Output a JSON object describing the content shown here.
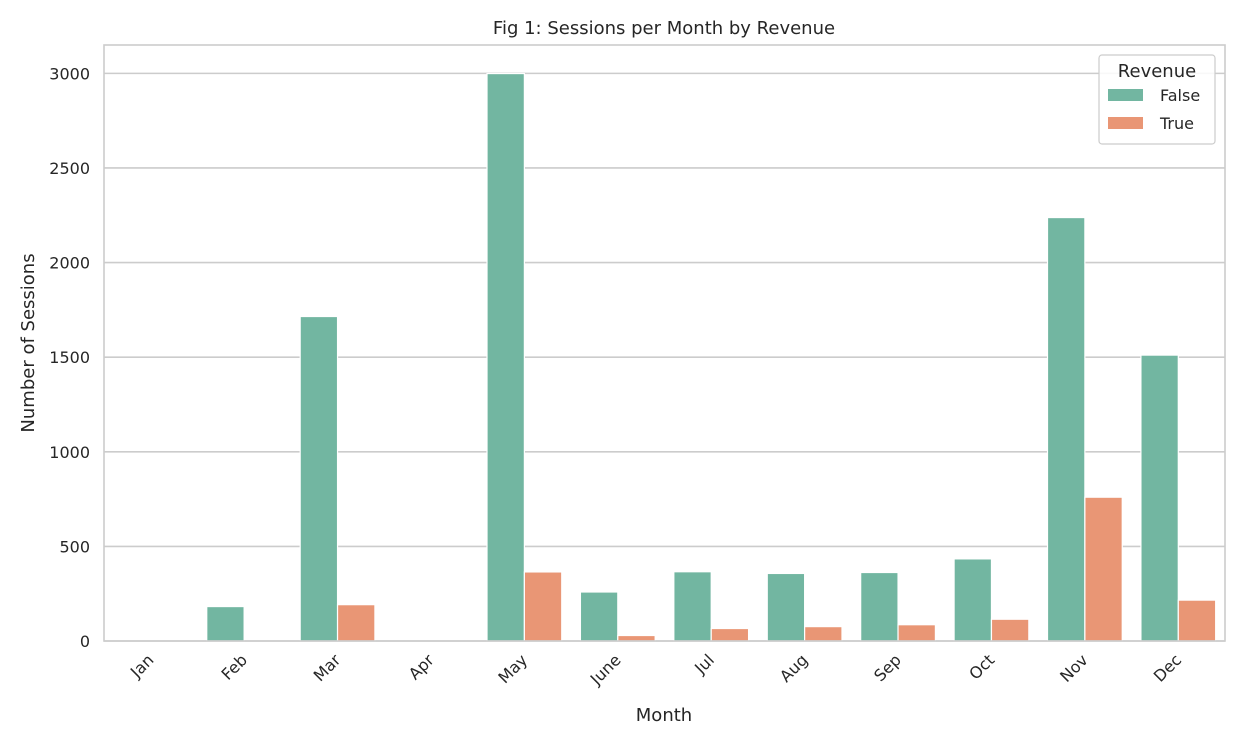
{
  "chart_data": {
    "type": "bar",
    "title": "Fig 1: Sessions per Month by Revenue",
    "xlabel": "Month",
    "ylabel": "Number of Sessions",
    "categories": [
      "Jan",
      "Feb",
      "Mar",
      "Apr",
      "May",
      "June",
      "Jul",
      "Aug",
      "Sep",
      "Oct",
      "Nov",
      "Dec"
    ],
    "series": [
      {
        "name": "False",
        "color": "#72b6a1",
        "values": [
          0,
          182,
          1715,
          0,
          2999,
          259,
          366,
          357,
          362,
          434,
          2238,
          1511
        ]
      },
      {
        "name": "True",
        "color": "#e99675",
        "values": [
          0,
          0,
          192,
          0,
          365,
          29,
          66,
          76,
          86,
          115,
          760,
          216
        ]
      }
    ],
    "ylim": [
      0,
      3150
    ],
    "yticks": [
      0,
      500,
      1000,
      1500,
      2000,
      2500,
      3000
    ],
    "grid": true,
    "legend": {
      "title": "Revenue",
      "placement": "top-right"
    }
  }
}
